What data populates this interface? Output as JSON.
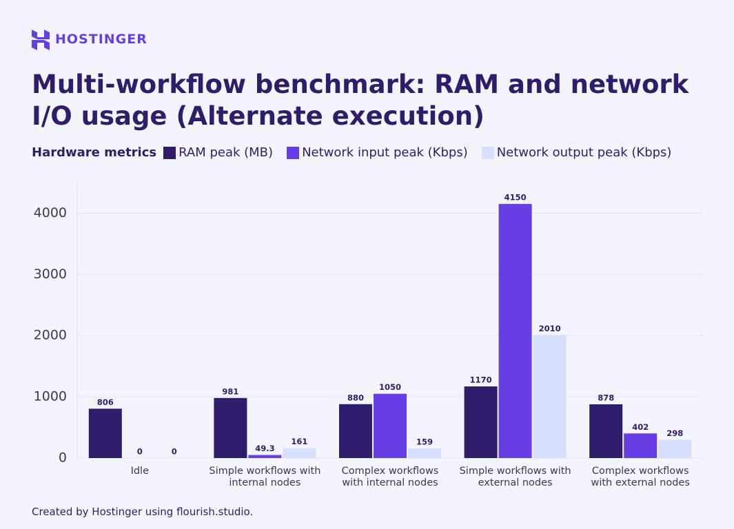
{
  "brand": "HOSTINGER",
  "footer": "Created by Hostinger using flourish.studio.",
  "chart_data": {
    "type": "bar",
    "title": "Multi-workflow benchmark: RAM and network I/O usage (Alternate execution)",
    "legend_title": "Hardware metrics",
    "categories": [
      "Idle",
      "Simple workflows with internal nodes",
      "Complex workflows with internal nodes",
      "Simple workflows with external nodes",
      "Complex workflows with external nodes"
    ],
    "series": [
      {
        "name": "RAM peak (MB)",
        "color": "#2f1c6a",
        "values": [
          806,
          981,
          880,
          1170,
          878
        ]
      },
      {
        "name": "Network input peak (Kbps)",
        "color": "#673de6",
        "values": [
          0,
          49.3,
          1050,
          4150,
          402
        ]
      },
      {
        "name": "Network output peak (Kbps)",
        "color": "#d5dfff",
        "values": [
          0,
          161,
          159,
          2010,
          298
        ]
      }
    ],
    "ylim": [
      0,
      4500
    ],
    "yticks": [
      0,
      1000,
      2000,
      3000,
      4000
    ],
    "grid": true
  }
}
